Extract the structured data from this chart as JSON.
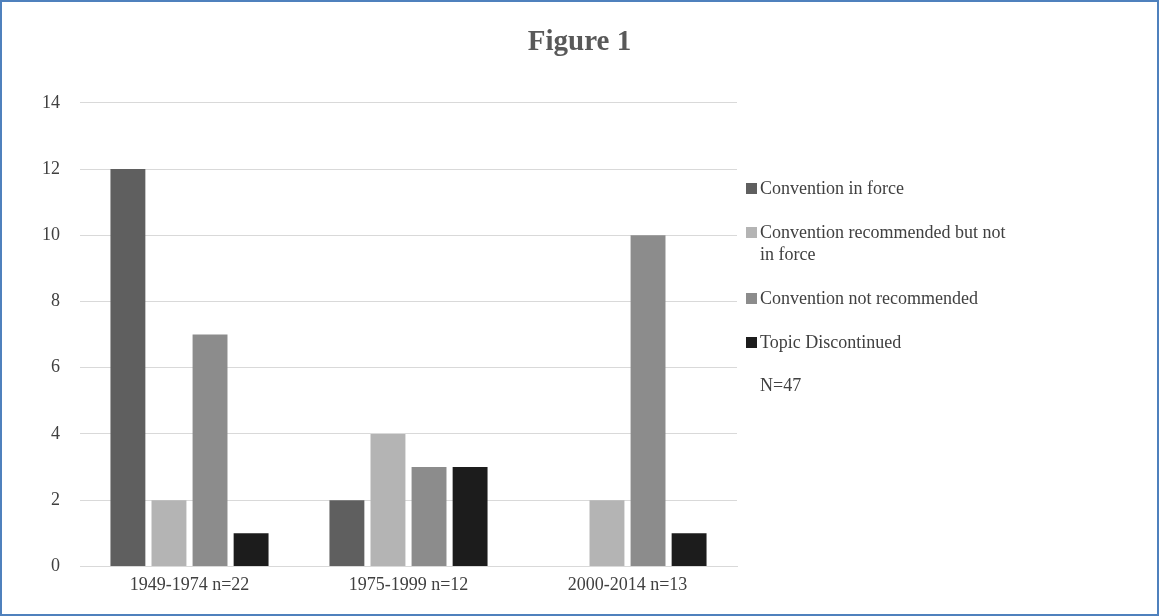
{
  "chart_data": {
    "type": "bar",
    "title": "Figure 1",
    "categories": [
      "1949-1974 n=22",
      "1975-1999 n=12",
      "2000-2014 n=13"
    ],
    "series": [
      {
        "name": "Convention in force",
        "color": "#5f5f5f",
        "values": [
          12,
          2,
          0
        ]
      },
      {
        "name": "Convention recommended but not in force",
        "color": "#b4b4b4",
        "values": [
          2,
          4,
          2
        ]
      },
      {
        "name": "Convention not recommended",
        "color": "#8c8c8c",
        "values": [
          7,
          3,
          10
        ]
      },
      {
        "name": "Topic Discontinued",
        "color": "#1c1c1c",
        "values": [
          1,
          3,
          1
        ]
      }
    ],
    "ylim": [
      0,
      14
    ],
    "yticks": [
      0,
      2,
      4,
      6,
      8,
      10,
      12,
      14
    ],
    "grid": "y",
    "legend": "right",
    "annotations": [
      "N=47"
    ]
  }
}
